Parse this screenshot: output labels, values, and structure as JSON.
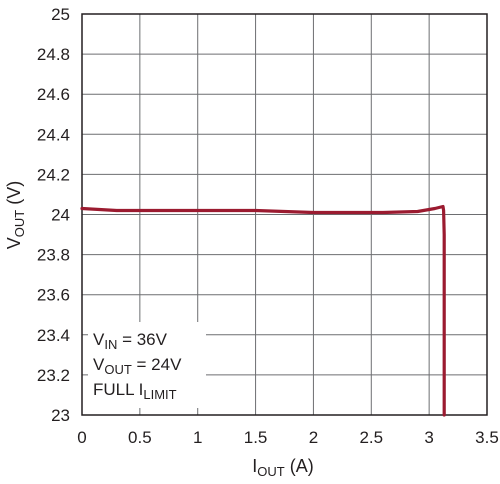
{
  "chart_data": {
    "type": "line",
    "title": "",
    "xlabel": {
      "main": "I",
      "sub": "OUT",
      "unit": " (A)"
    },
    "ylabel": {
      "main": "V",
      "sub": "OUT",
      "unit": " (V)"
    },
    "xlim": [
      0,
      3.5
    ],
    "ylim": [
      23,
      25
    ],
    "x_ticks": [
      "0",
      "0.5",
      "1",
      "1.5",
      "2",
      "2.5",
      "3",
      "3.5"
    ],
    "y_ticks": [
      "23",
      "23.2",
      "23.4",
      "23.6",
      "23.8",
      "24",
      "24.2",
      "24.4",
      "24.6",
      "24.8",
      "25"
    ],
    "grid": true,
    "series_color": "#9b1b30",
    "series": [
      {
        "x": [
          0,
          0.3,
          0.6,
          1.0,
          1.5,
          2.0,
          2.3,
          2.6,
          2.9,
          3.05,
          3.12,
          3.125,
          3.13,
          3.13
        ],
        "y": [
          24.03,
          24.02,
          24.02,
          24.02,
          24.02,
          24.01,
          24.01,
          24.01,
          24.015,
          24.03,
          24.04,
          24.02,
          23.9,
          23.0
        ]
      }
    ],
    "annotations": [
      {
        "main": "V",
        "sub": "IN",
        "rest": " = 36V"
      },
      {
        "main": "V",
        "sub": "OUT",
        "rest": " = 24V"
      },
      {
        "main": "FULL I",
        "sub": "LIMIT",
        "rest": ""
      }
    ]
  }
}
